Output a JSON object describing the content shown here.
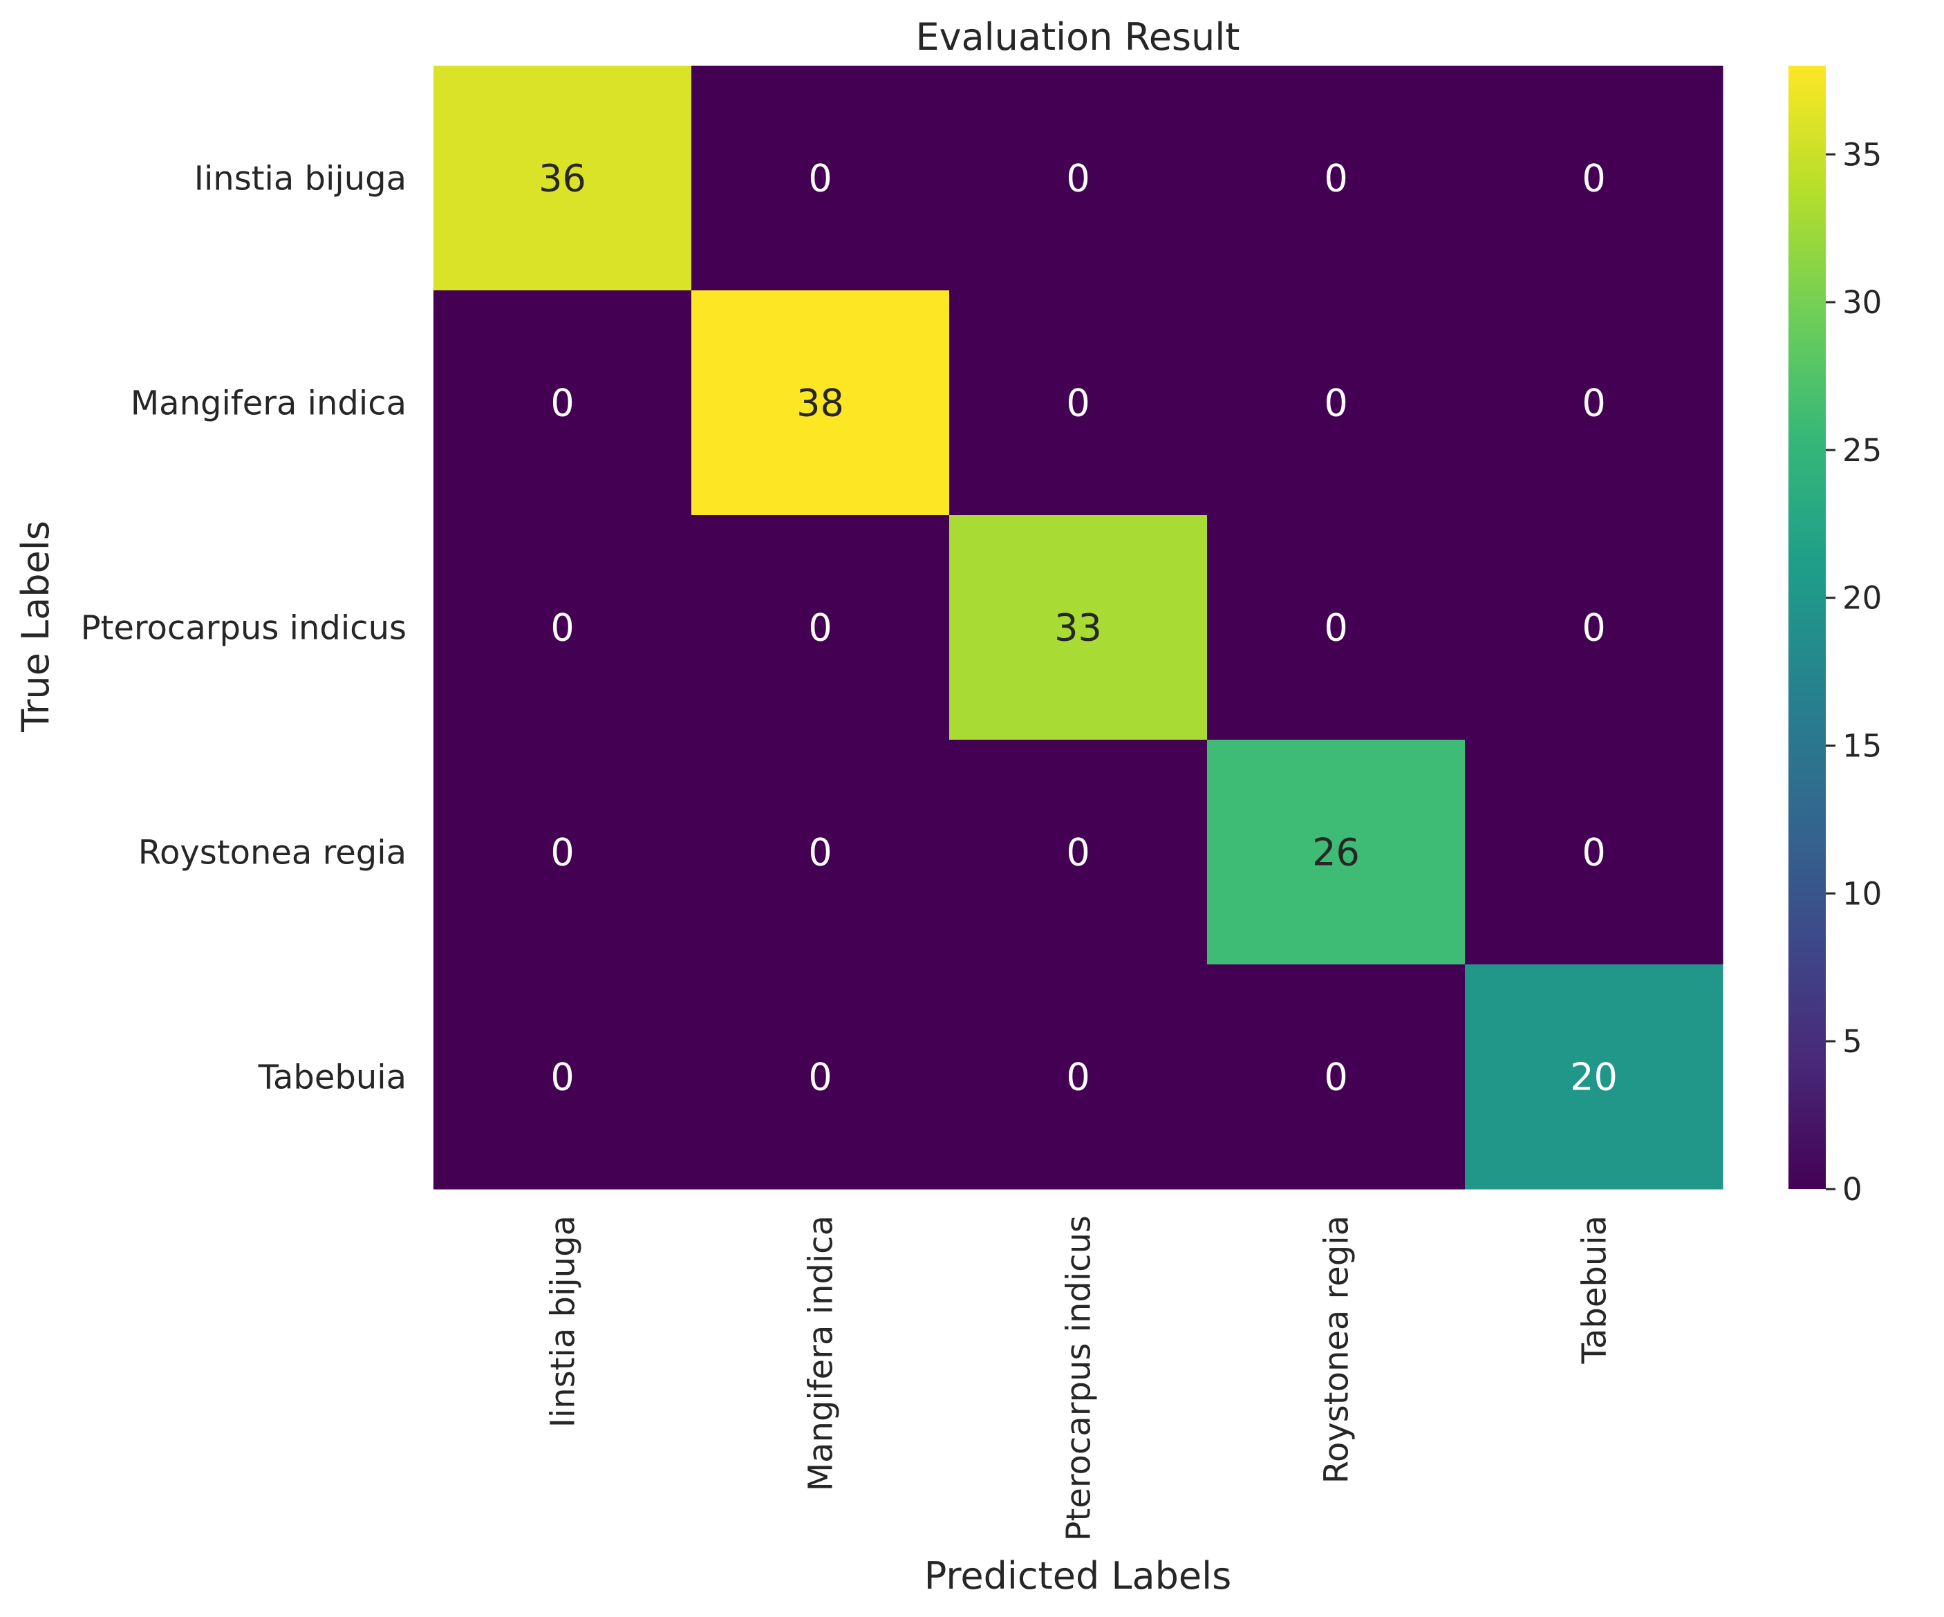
{
  "chart_data": {
    "type": "heatmap",
    "title": "Evaluation Result",
    "xlabel": "Predicted Labels",
    "ylabel": "True Labels",
    "x_categories": [
      "Iinstia bijuga",
      "Mangifera indica",
      "Pterocarpus indicus",
      "Roystonea regia",
      "Tabebuia"
    ],
    "y_categories": [
      "Iinstia bijuga",
      "Mangifera indica",
      "Pterocarpus indicus",
      "Roystonea regia",
      "Tabebuia"
    ],
    "values": [
      [
        36,
        0,
        0,
        0,
        0
      ],
      [
        0,
        38,
        0,
        0,
        0
      ],
      [
        0,
        0,
        33,
        0,
        0
      ],
      [
        0,
        0,
        0,
        26,
        0
      ],
      [
        0,
        0,
        0,
        0,
        20
      ]
    ],
    "colormap": "viridis",
    "colorbar": {
      "range": [
        0,
        38
      ],
      "ticks": [
        0,
        5,
        10,
        15,
        20,
        25,
        30,
        35
      ]
    },
    "grid": false
  }
}
